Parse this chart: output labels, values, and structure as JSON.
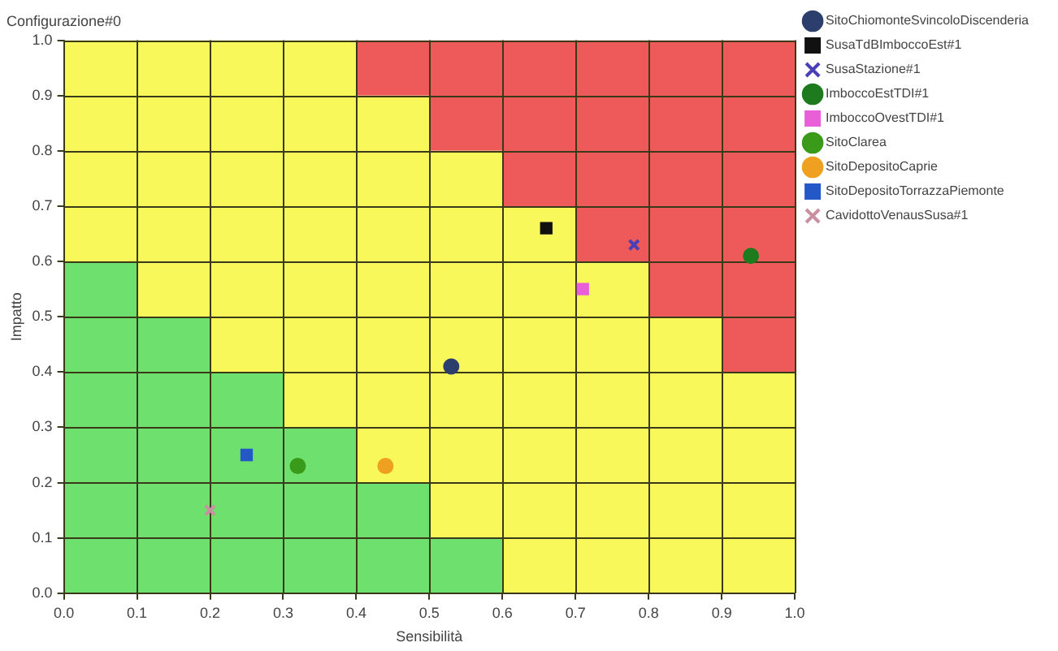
{
  "chart_data": {
    "type": "scatter",
    "title": "Configurazione#0",
    "xlabel": "Sensibilità",
    "ylabel": "Impatto",
    "xlim": [
      0,
      1
    ],
    "ylim": [
      0,
      1
    ],
    "xticks": [
      {
        "value": 0,
        "label": "0.0"
      },
      {
        "value": 0.1,
        "label": "0.1"
      },
      {
        "value": 0.2,
        "label": "0.2"
      },
      {
        "value": 0.3,
        "label": "0.3"
      },
      {
        "value": 0.4,
        "label": "0.4"
      },
      {
        "value": 0.5,
        "label": "0.5"
      },
      {
        "value": 0.6,
        "label": "0.6"
      },
      {
        "value": 0.7,
        "label": "0.7"
      },
      {
        "value": 0.8,
        "label": "0.8"
      },
      {
        "value": 0.9,
        "label": "0.9"
      },
      {
        "value": 1,
        "label": "1.0"
      }
    ],
    "yticks": [
      {
        "value": 0,
        "label": "0.0"
      },
      {
        "value": 0.1,
        "label": "0.1"
      },
      {
        "value": 0.2,
        "label": "0.2"
      },
      {
        "value": 0.3,
        "label": "0.3"
      },
      {
        "value": 0.4,
        "label": "0.4"
      },
      {
        "value": 0.5,
        "label": "0.5"
      },
      {
        "value": 0.6,
        "label": "0.6"
      },
      {
        "value": 0.7,
        "label": "0.7"
      },
      {
        "value": 0.8,
        "label": "0.8"
      },
      {
        "value": 0.9,
        "label": "0.9"
      },
      {
        "value": 1,
        "label": "1.0"
      }
    ],
    "grid": true,
    "legend": "top right",
    "stacked": true,
    "series": [
      {
        "type": "area",
        "color": "#6ee06e",
        "x": [
          0,
          0.1,
          0.1,
          0.2,
          0.2,
          0.3,
          0.3,
          0.4,
          0.4,
          0.5,
          0.5,
          0.6,
          0.6,
          0.7,
          0.7,
          0.8,
          0.8,
          0.9,
          0.9,
          1
        ],
        "values": [
          0.6,
          0.6,
          0.5,
          0.5,
          0.4,
          0.4,
          0.3,
          0.3,
          0.2,
          0.2,
          0.1,
          0.1,
          0,
          0,
          0,
          0,
          0,
          0,
          0,
          0
        ]
      },
      {
        "type": "area",
        "color": "#f8f85a",
        "x": [
          0,
          0.1,
          0.1,
          0.2,
          0.2,
          0.3,
          0.3,
          0.4,
          0.4,
          0.5,
          0.5,
          0.6,
          0.6,
          0.7,
          0.7,
          0.8,
          0.8,
          0.9,
          0.9,
          1
        ],
        "values": [
          0.4,
          0.4,
          0.5,
          0.5,
          0.6,
          0.6,
          0.7,
          0.7,
          0.7,
          0.7,
          0.7,
          0.7,
          0.7,
          0.7,
          0.6,
          0.6,
          0.5,
          0.5,
          0.4,
          0.4
        ]
      },
      {
        "type": "area",
        "color": "#ee5a5a",
        "x": [
          0,
          0.1,
          0.1,
          0.2,
          0.2,
          0.3,
          0.3,
          0.4,
          0.4,
          0.5,
          0.5,
          0.6,
          0.6,
          0.7,
          0.7,
          0.8,
          0.8,
          0.9,
          0.9,
          1
        ],
        "values": [
          0,
          0,
          0,
          0,
          0,
          0,
          0,
          0,
          0.1,
          0.1,
          0.2,
          0.2,
          0.3,
          0.3,
          0.4,
          0.4,
          0.5,
          0.5,
          0.6,
          0.6
        ]
      },
      {
        "name": "SitoChiomonteSvincoloDiscenderia",
        "color": "#2c3e6b",
        "marker": "circle",
        "x": [
          0.53
        ],
        "values": [
          0.41
        ]
      },
      {
        "name": "SusaTdBImboccoEst#1",
        "color": "#111111",
        "marker": "square",
        "x": [
          0.66
        ],
        "values": [
          0.66
        ]
      },
      {
        "name": "SusaStazione#1",
        "color": "#4b3fb5",
        "marker": "cross",
        "x": [
          0.78
        ],
        "values": [
          0.63
        ]
      },
      {
        "name": "ImboccoEstTDI#1",
        "color": "#1d7a1d",
        "marker": "circle",
        "x": [
          0.94
        ],
        "values": [
          0.61
        ]
      },
      {
        "name": "ImboccoOvestTDI#1",
        "color": "#e85fd8",
        "marker": "square",
        "x": [
          0.71
        ],
        "values": [
          0.55
        ]
      },
      {
        "name": "SitoClarea",
        "color": "#3a9a1a",
        "marker": "circle",
        "x": [
          0.32
        ],
        "values": [
          0.23
        ]
      },
      {
        "name": "SitoDepositoCaprie",
        "color": "#f0a020",
        "marker": "circle",
        "x": [
          0.44
        ],
        "values": [
          0.23
        ]
      },
      {
        "name": "SitoDepositoTorrazzaPiemonte",
        "color": "#2458c8",
        "marker": "square",
        "x": [
          0.25
        ],
        "values": [
          0.25
        ]
      },
      {
        "name": "CavidottoVenausSusa#1",
        "color": "#c890a0",
        "marker": "cross",
        "x": [
          0.2
        ],
        "values": [
          0.15
        ]
      }
    ]
  }
}
